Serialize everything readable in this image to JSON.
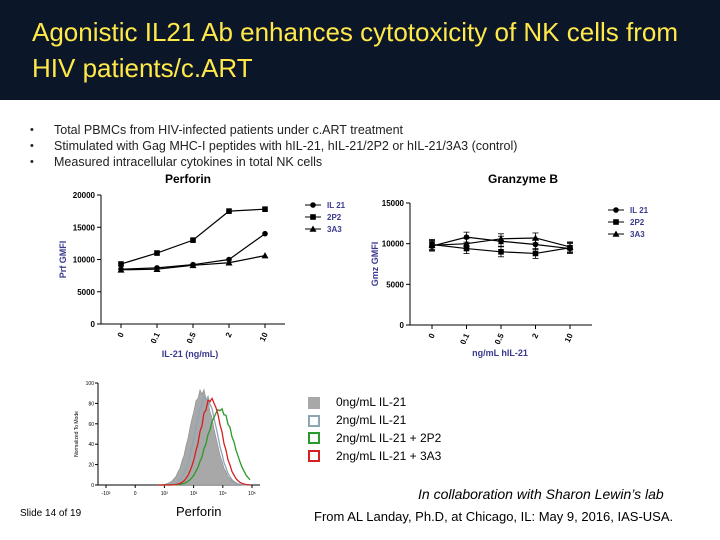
{
  "slide": {
    "title": "Agonistic IL21 Ab enhances cytotoxicity of NK cells from HIV patients/c.ART",
    "bullets": [
      "Total PBMCs from HIV-infected patients under c.ART treatment",
      "Stimulated with Gag MHC-I peptides with hIL-21, hIL-21/2P2 or hIL-21/3A3 (control)",
      "Measured intracellular cytokines in total NK cells"
    ],
    "slide_number": "Slide 14 of 19",
    "collaboration": "In collaboration with Sharon Lewin’s lab",
    "source": "From AL Landay, Ph.D, at Chicago, IL: May 9, 2016, IAS-USA."
  },
  "colors": {
    "header_bg": "#0b1628",
    "title_text": "#ffe84a"
  },
  "histogram": {
    "xlabel": "Perforin",
    "ylabel": "Normalized To Mode",
    "y_ticks": [
      "100",
      "80",
      "60",
      "40",
      "20",
      "0"
    ],
    "x_ticks": [
      "-10²",
      "0",
      "10²",
      "10³",
      "10⁴",
      "10⁵"
    ],
    "legend": [
      {
        "label": "0ng/mL IL-21",
        "color": "#a8a8a8",
        "style": "filled"
      },
      {
        "label": "2ng/mL IL-21",
        "color": "#8ea5b5",
        "style": "outline"
      },
      {
        "label": "2ng/mL IL-21 + 2P2",
        "color": "#2a9a2a",
        "style": "outline"
      },
      {
        "label": "2ng/mL IL-21 + 3A3",
        "color": "#d42020",
        "style": "outline"
      }
    ]
  },
  "chart_data": [
    {
      "type": "line",
      "title": "Perforin",
      "xlabel": "IL-21 (ng/mL)",
      "ylabel": "Prf GMFI",
      "categories": [
        "0",
        "0.1",
        "0.5",
        "2",
        "10"
      ],
      "ylim": [
        0,
        20000
      ],
      "yticks": [
        0,
        5000,
        10000,
        15000,
        20000
      ],
      "series": [
        {
          "name": "IL 21",
          "marker": "circle",
          "values": [
            8500,
            8700,
            9200,
            10000,
            14000
          ]
        },
        {
          "name": "2P2",
          "marker": "square",
          "values": [
            9300,
            11000,
            13000,
            17500,
            17800
          ]
        },
        {
          "name": "3A3",
          "marker": "triangle",
          "values": [
            8400,
            8500,
            9100,
            9500,
            10600
          ]
        }
      ]
    },
    {
      "type": "line",
      "title": "Granzyme B",
      "xlabel": "ng/mL hIL-21",
      "ylabel": "Gmz GMFI",
      "categories": [
        "0",
        "0.1",
        "0.5",
        "2",
        "10"
      ],
      "ylim": [
        0,
        15000
      ],
      "yticks": [
        0,
        5000,
        10000,
        15000
      ],
      "series": [
        {
          "name": "IL 21",
          "marker": "circle",
          "values": [
            9700,
            10800,
            10300,
            9900,
            9400
          ]
        },
        {
          "name": "2P2",
          "marker": "square",
          "values": [
            9900,
            9400,
            9000,
            8800,
            9500
          ]
        },
        {
          "name": "3A3",
          "marker": "triangle",
          "values": [
            9800,
            10000,
            10600,
            10700,
            9600
          ]
        }
      ]
    }
  ]
}
